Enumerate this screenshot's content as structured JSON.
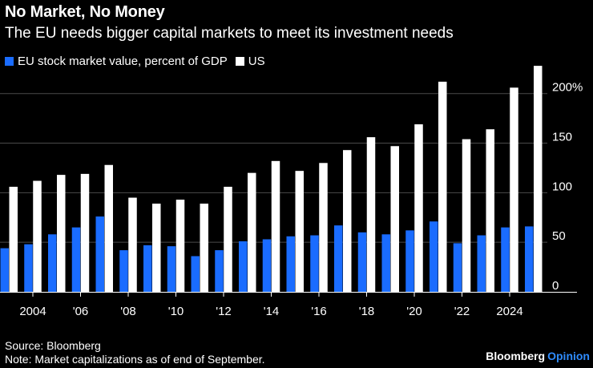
{
  "header": {
    "title": "No Market, No Money",
    "subtitle": "The EU needs bigger capital markets to meet its investment needs"
  },
  "legend": {
    "eu_label": "EU stock market value, percent of GDP",
    "us_label": "US"
  },
  "colors": {
    "eu": "#1a6cff",
    "us": "#ffffff",
    "background": "#000000",
    "brand_accent": "#2f8cff"
  },
  "footer": {
    "source": "Source: Bloomberg",
    "note": "Note: Market capitalizations as of end of September.",
    "brand_name": "Bloomberg",
    "brand_suffix": "Opinion"
  },
  "chart_data": {
    "type": "bar",
    "title": "No Market, No Money",
    "subtitle": "The EU needs bigger capital markets to meet its investment needs",
    "xlabel": "",
    "ylabel": "",
    "ylim": [
      0,
      220
    ],
    "yticks": [
      0,
      50,
      100,
      150,
      200
    ],
    "ytick_labels": [
      "0",
      "50",
      "100",
      "150",
      "200%"
    ],
    "grid": true,
    "legend_position": "top-left",
    "categories": [
      "2003",
      "2004",
      "2005",
      "2006",
      "2007",
      "2008",
      "2009",
      "2010",
      "2011",
      "2012",
      "2013",
      "2014",
      "2015",
      "2016",
      "2017",
      "2018",
      "2019",
      "2020",
      "2021",
      "2022",
      "2023",
      "2024",
      "2025"
    ],
    "xtick_labels": [
      {
        "year": "2004",
        "label": "2004"
      },
      {
        "year": "2006",
        "label": "'06"
      },
      {
        "year": "2008",
        "label": "'08"
      },
      {
        "year": "2010",
        "label": "'10"
      },
      {
        "year": "2012",
        "label": "'12"
      },
      {
        "year": "2014",
        "label": "'14"
      },
      {
        "year": "2016",
        "label": "'16"
      },
      {
        "year": "2018",
        "label": "'18"
      },
      {
        "year": "2020",
        "label": "'20"
      },
      {
        "year": "2022",
        "label": "'22"
      },
      {
        "year": "2024",
        "label": "2024"
      }
    ],
    "series": [
      {
        "name": "EU stock market value, percent of GDP",
        "values": [
          44,
          48,
          58,
          65,
          76,
          42,
          47,
          46,
          36,
          42,
          51,
          53,
          56,
          57,
          67,
          60,
          58,
          62,
          71,
          49,
          57,
          65,
          66
        ]
      },
      {
        "name": "US",
        "values": [
          106,
          112,
          118,
          119,
          128,
          95,
          89,
          93,
          89,
          106,
          120,
          132,
          122,
          130,
          143,
          156,
          147,
          169,
          212,
          154,
          164,
          206,
          228
        ]
      }
    ]
  }
}
